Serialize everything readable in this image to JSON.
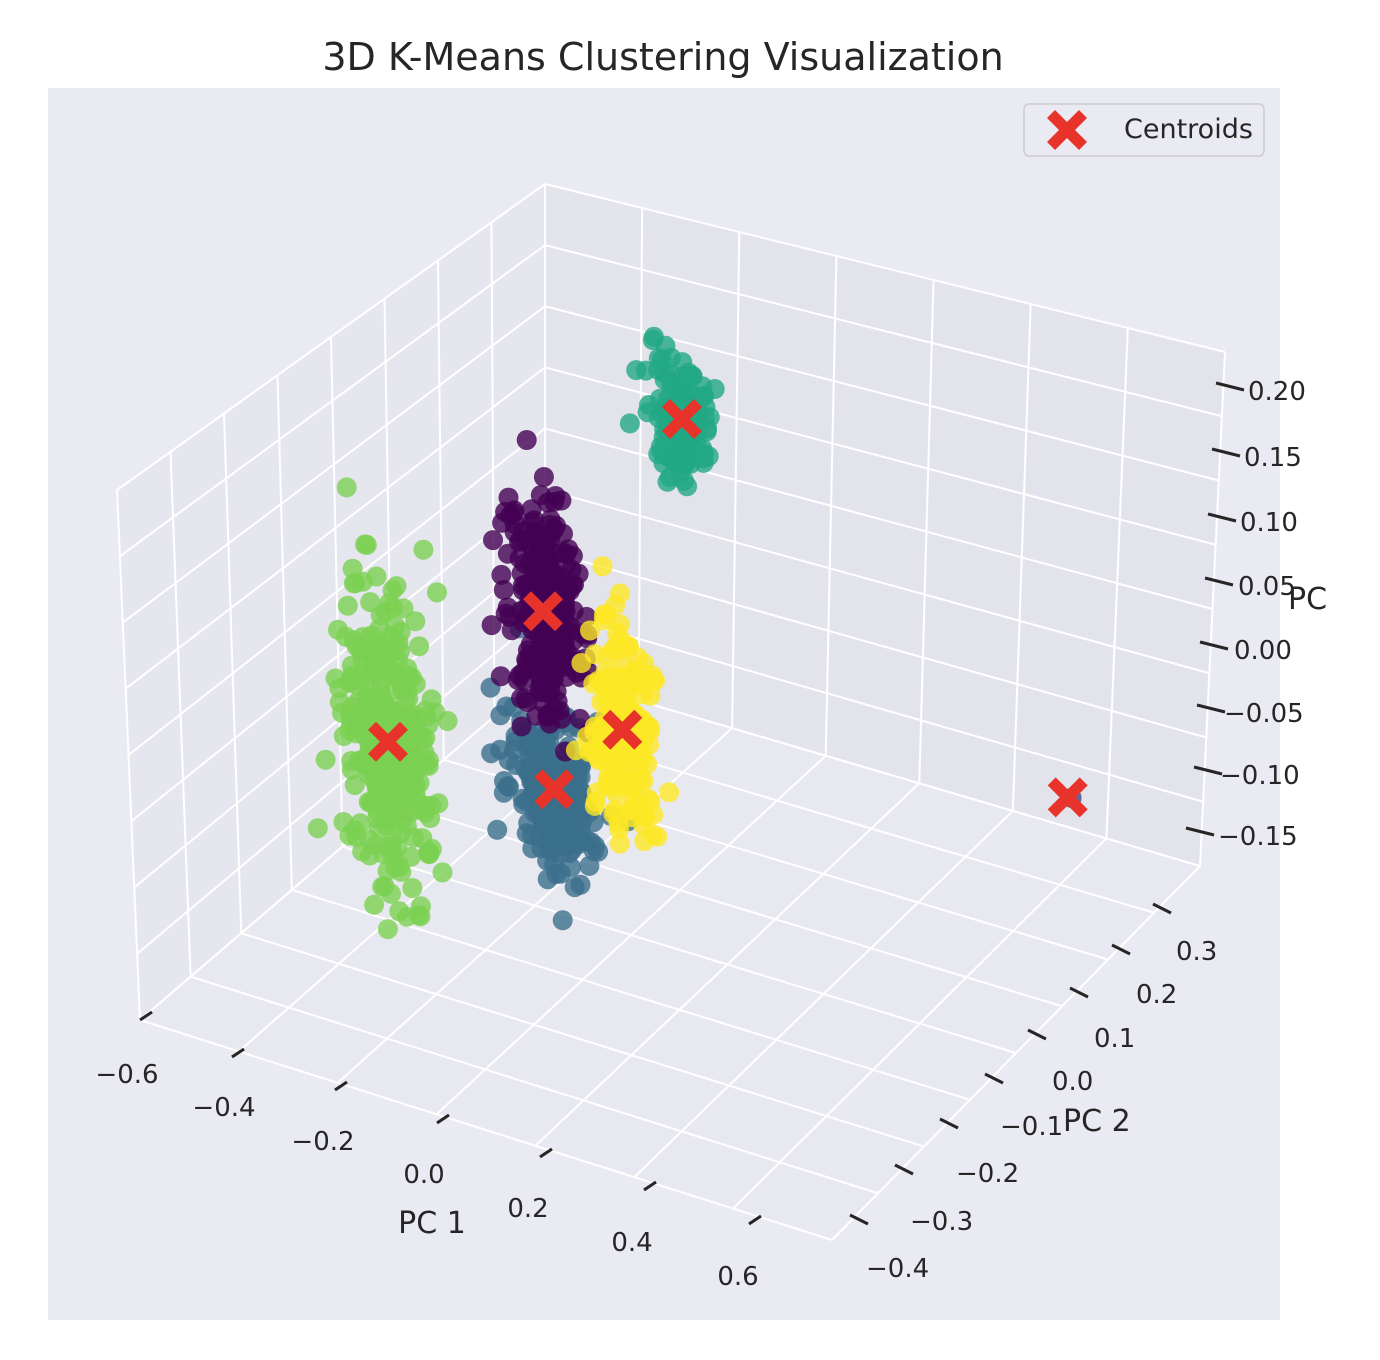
{
  "chart_data": {
    "type": "scatter",
    "projection": "3d",
    "title": "3D K-Means Clustering Visualization",
    "xlabel": "PC 1",
    "ylabel": "PC 2",
    "zlabel": "PC",
    "x_ticks": [
      "−0.6",
      "−0.4",
      "−0.2",
      "0.0",
      "0.2",
      "0.4",
      "0.6"
    ],
    "y_ticks": [
      "−0.4",
      "−0.3",
      "−0.2",
      "−0.1",
      "0.0",
      "0.1",
      "0.2",
      "0.3"
    ],
    "z_ticks": [
      "−0.15",
      "−0.10",
      "−0.05",
      "0.00",
      "0.05",
      "0.10",
      "0.15",
      "0.20"
    ],
    "grid": true,
    "colors": {
      "background": "#eaeaf2",
      "grid": "#ffffff",
      "centroid": "#e8332a"
    },
    "clusters": [
      {
        "color": "#440154",
        "approx_center": [
          -0.27,
          0.02,
          0.05
        ]
      },
      {
        "color": "#3b6f8c",
        "approx_center": [
          -0.25,
          0.02,
          -0.08
        ]
      },
      {
        "color": "#22a884",
        "approx_center": [
          -0.17,
          0.18,
          0.15
        ]
      },
      {
        "color": "#7ad151",
        "approx_center": [
          -0.48,
          -0.05,
          -0.05
        ]
      },
      {
        "color": "#fde725",
        "approx_center": [
          -0.13,
          0.02,
          -0.02
        ]
      },
      {
        "color": "#414487",
        "approx_center": [
          0.42,
          0.28,
          -0.09
        ]
      }
    ],
    "legend": {
      "position": "upper right",
      "entries": [
        "Centroids"
      ]
    }
  }
}
